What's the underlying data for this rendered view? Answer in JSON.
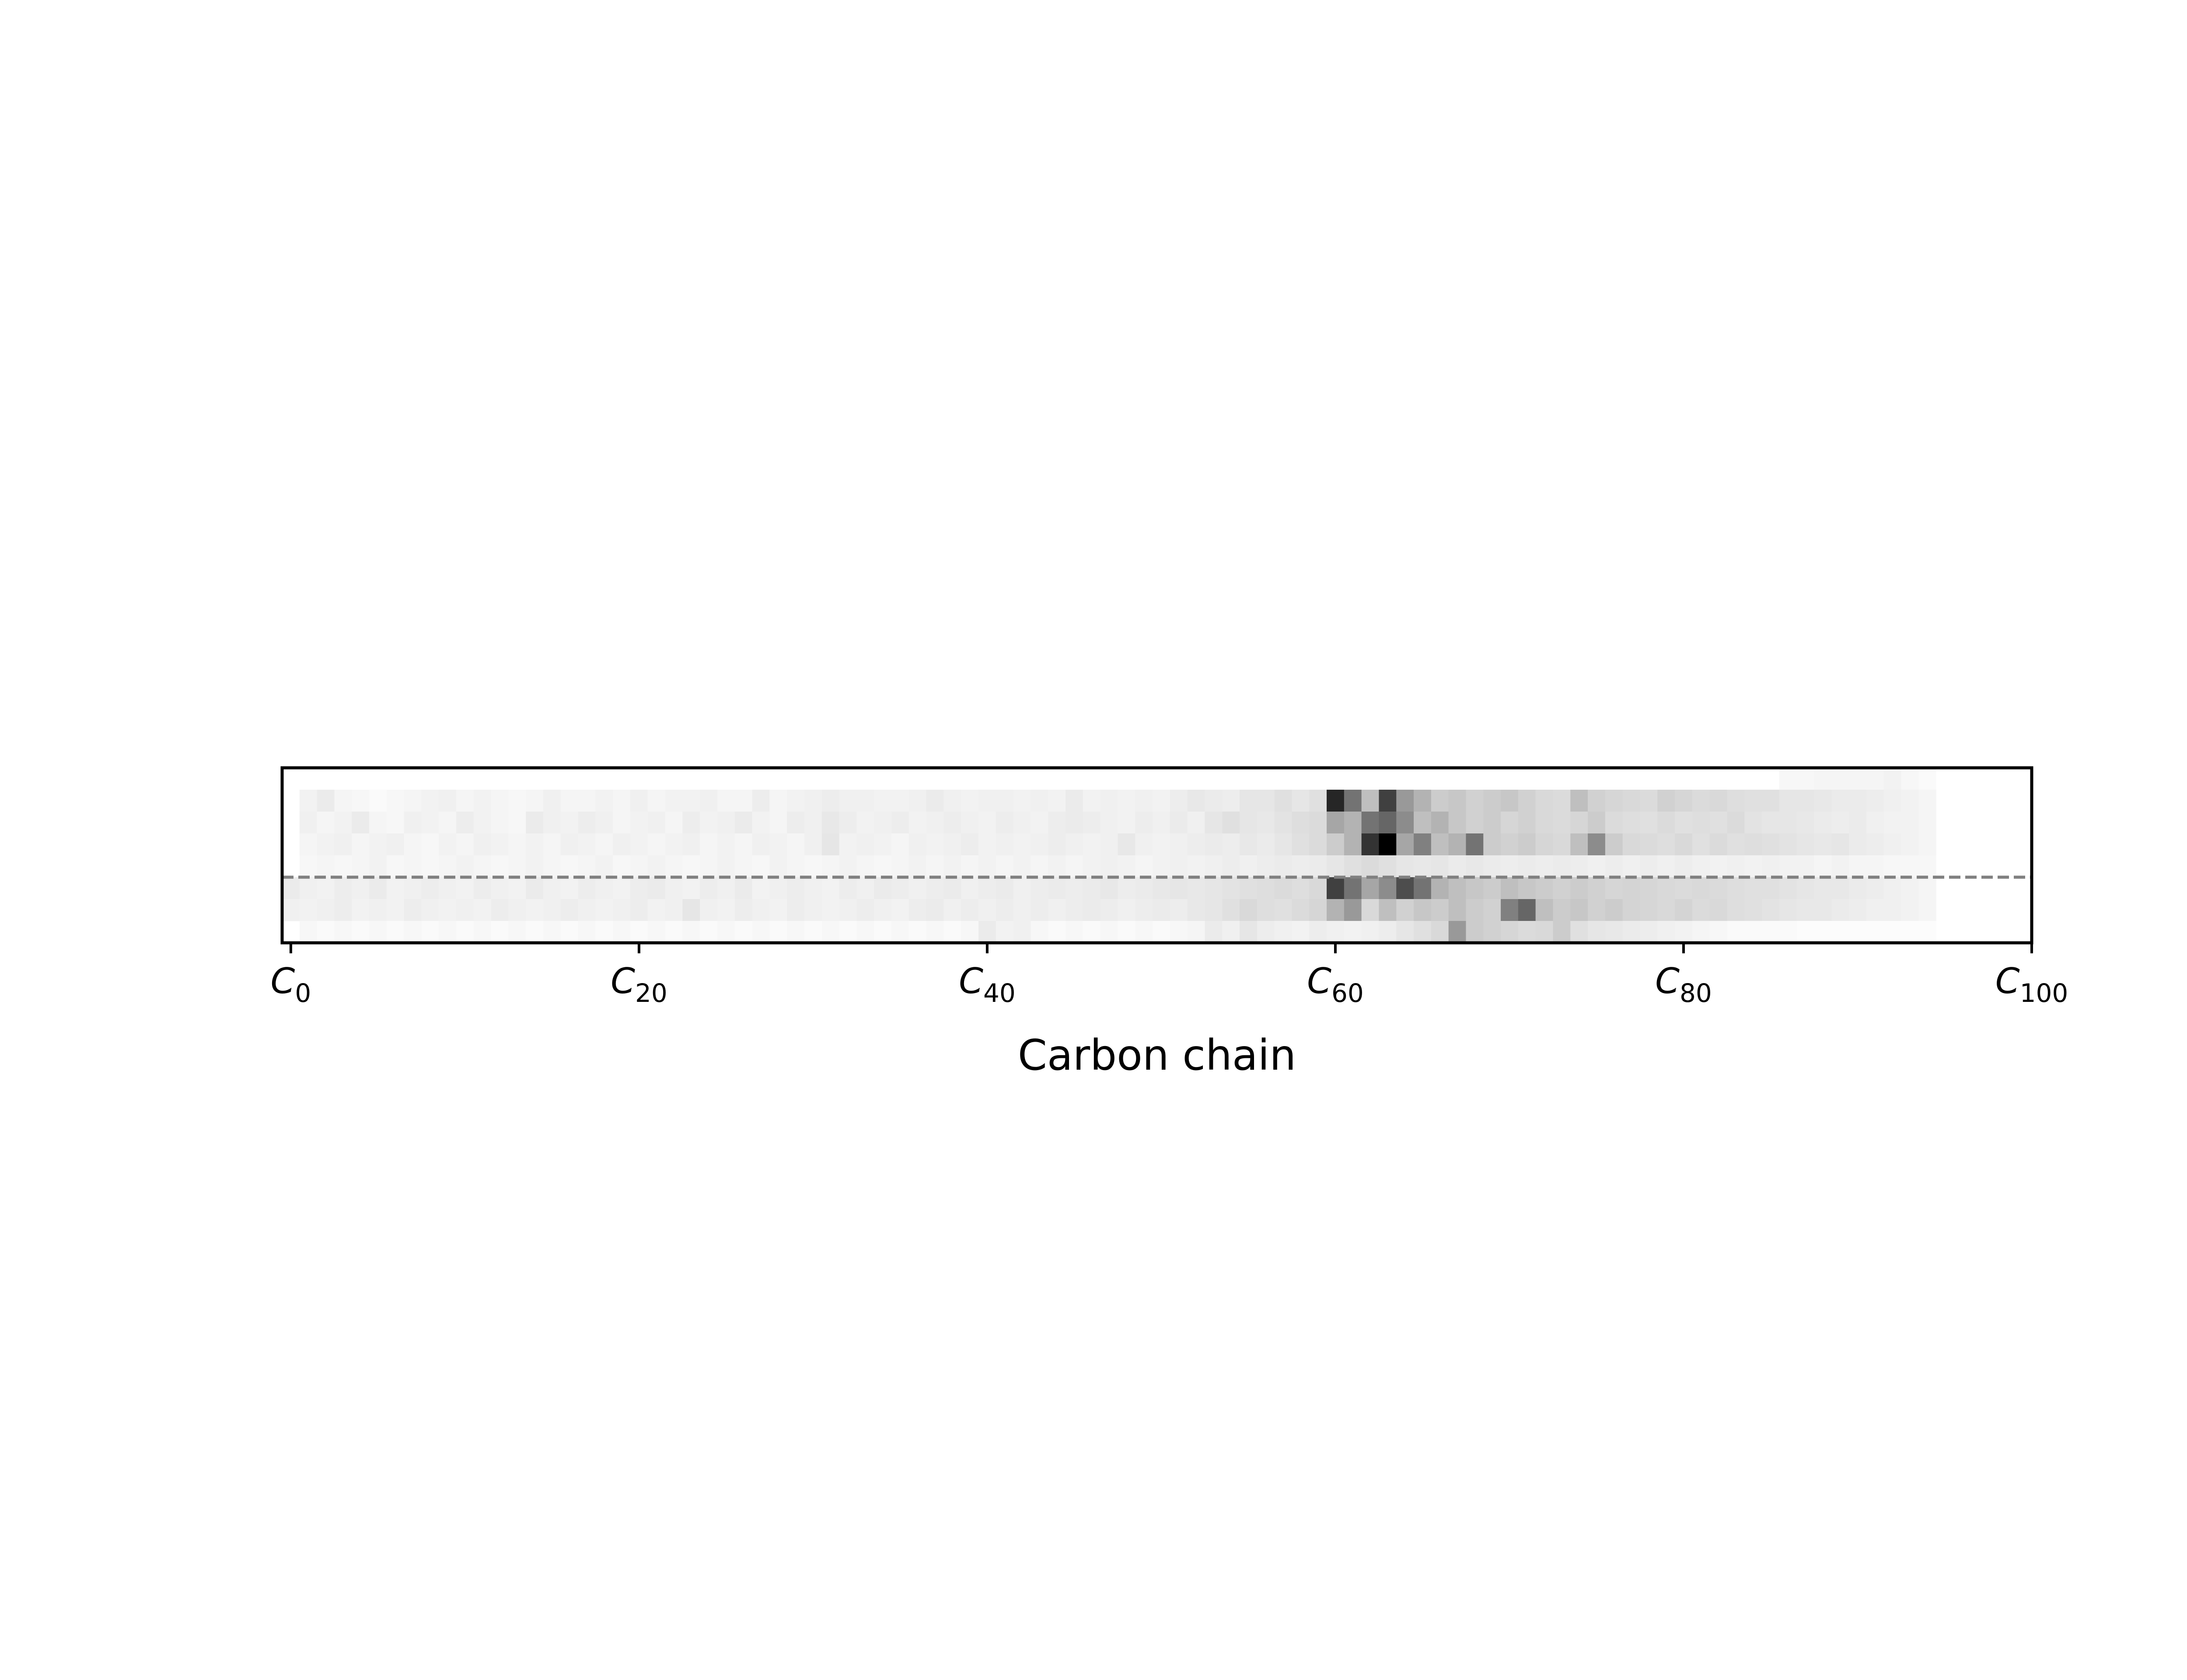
{
  "chart_data": {
    "type": "heatmap",
    "title": "",
    "xlabel": "Carbon chain",
    "ylabel": "",
    "xlim": [
      -0.5,
      100
    ],
    "colormap": "greys",
    "colors": {
      "frame": "#000000",
      "divider": "#808080",
      "background": "#ffffff"
    },
    "divider_line": {
      "style": "dashed",
      "between_rows": [
        4,
        5
      ]
    },
    "x_ticks": [
      {
        "value": 0,
        "base": "C",
        "sub": "0"
      },
      {
        "value": 20,
        "base": "C",
        "sub": "20"
      },
      {
        "value": 40,
        "base": "C",
        "sub": "40"
      },
      {
        "value": 60,
        "base": "C",
        "sub": "60"
      },
      {
        "value": 80,
        "base": "C",
        "sub": "80"
      },
      {
        "value": 100,
        "base": "C",
        "sub": "100"
      }
    ],
    "columns": 95,
    "rows": [
      {
        "index": 0,
        "values": [
          0,
          0,
          0,
          0,
          0,
          0,
          0,
          0,
          0,
          0,
          0,
          0,
          0,
          0,
          0,
          0,
          0,
          0,
          0,
          0,
          0,
          0,
          0,
          0,
          0,
          0,
          0,
          0,
          0,
          0,
          0,
          0,
          0,
          0,
          0,
          0,
          0,
          0,
          0,
          0,
          0,
          0,
          0,
          0,
          0,
          0,
          0,
          0,
          0,
          0,
          0,
          0,
          0,
          0,
          0,
          0,
          0,
          0,
          0,
          0,
          0,
          0,
          0,
          0,
          0,
          0,
          0,
          0,
          0,
          0,
          0,
          0,
          0,
          0,
          0,
          0,
          0,
          0,
          0,
          0,
          0,
          0,
          0,
          0,
          0,
          0,
          0.03,
          0.03,
          0.04,
          0.04,
          0.04,
          0.04,
          0.05,
          0.03,
          0.02
        ]
      },
      {
        "index": 1,
        "values": [
          0,
          0.05,
          0.08,
          0.04,
          0.03,
          0.02,
          0.03,
          0.04,
          0.05,
          0.06,
          0.04,
          0.05,
          0.04,
          0.03,
          0.04,
          0.06,
          0.04,
          0.04,
          0.05,
          0.04,
          0.06,
          0.04,
          0.05,
          0.05,
          0.06,
          0.04,
          0.04,
          0.07,
          0.04,
          0.05,
          0.06,
          0.07,
          0.06,
          0.06,
          0.05,
          0.05,
          0.06,
          0.08,
          0.06,
          0.05,
          0.06,
          0.06,
          0.05,
          0.06,
          0.05,
          0.08,
          0.05,
          0.06,
          0.05,
          0.06,
          0.05,
          0.07,
          0.09,
          0.08,
          0.07,
          0.1,
          0.1,
          0.12,
          0.1,
          0.12,
          0.85,
          0.55,
          0.25,
          0.75,
          0.4,
          0.3,
          0.2,
          0.22,
          0.18,
          0.2,
          0.22,
          0.18,
          0.15,
          0.14,
          0.25,
          0.18,
          0.16,
          0.15,
          0.14,
          0.18,
          0.16,
          0.14,
          0.15,
          0.13,
          0.12,
          0.12,
          0.1,
          0.1,
          0.09,
          0.08,
          0.08,
          0.07,
          0.06,
          0.05,
          0.04
        ]
      },
      {
        "index": 2,
        "values": [
          0,
          0.06,
          0.04,
          0.05,
          0.08,
          0.04,
          0.03,
          0.06,
          0.05,
          0.04,
          0.07,
          0.05,
          0.04,
          0.03,
          0.08,
          0.06,
          0.05,
          0.07,
          0.06,
          0.04,
          0.05,
          0.06,
          0.04,
          0.07,
          0.05,
          0.06,
          0.08,
          0.05,
          0.04,
          0.07,
          0.06,
          0.09,
          0.07,
          0.05,
          0.06,
          0.07,
          0.05,
          0.06,
          0.07,
          0.06,
          0.05,
          0.07,
          0.06,
          0.05,
          0.07,
          0.08,
          0.07,
          0.06,
          0.05,
          0.07,
          0.06,
          0.08,
          0.06,
          0.1,
          0.12,
          0.1,
          0.09,
          0.11,
          0.13,
          0.14,
          0.35,
          0.3,
          0.55,
          0.6,
          0.45,
          0.25,
          0.3,
          0.22,
          0.18,
          0.2,
          0.16,
          0.18,
          0.15,
          0.14,
          0.16,
          0.2,
          0.14,
          0.13,
          0.12,
          0.14,
          0.12,
          0.13,
          0.12,
          0.14,
          0.11,
          0.1,
          0.1,
          0.09,
          0.08,
          0.07,
          0.08,
          0.06,
          0.05,
          0.05,
          0.04
        ]
      },
      {
        "index": 3,
        "values": [
          0,
          0.04,
          0.05,
          0.06,
          0.04,
          0.05,
          0.06,
          0.04,
          0.03,
          0.05,
          0.04,
          0.06,
          0.05,
          0.04,
          0.05,
          0.04,
          0.06,
          0.05,
          0.04,
          0.06,
          0.05,
          0.04,
          0.05,
          0.06,
          0.04,
          0.05,
          0.04,
          0.06,
          0.05,
          0.04,
          0.06,
          0.1,
          0.05,
          0.06,
          0.05,
          0.04,
          0.06,
          0.05,
          0.06,
          0.07,
          0.05,
          0.06,
          0.05,
          0.06,
          0.07,
          0.06,
          0.05,
          0.06,
          0.09,
          0.06,
          0.05,
          0.06,
          0.07,
          0.08,
          0.07,
          0.09,
          0.08,
          0.1,
          0.12,
          0.14,
          0.2,
          0.3,
          0.8,
          1.0,
          0.35,
          0.5,
          0.25,
          0.3,
          0.55,
          0.2,
          0.18,
          0.2,
          0.16,
          0.15,
          0.25,
          0.45,
          0.2,
          0.15,
          0.14,
          0.13,
          0.15,
          0.12,
          0.14,
          0.12,
          0.13,
          0.12,
          0.11,
          0.1,
          0.09,
          0.1,
          0.08,
          0.07,
          0.06,
          0.05,
          0.04
        ]
      },
      {
        "index": 4,
        "values": [
          0,
          0.03,
          0.04,
          0.03,
          0.04,
          0.05,
          0.03,
          0.04,
          0.03,
          0.04,
          0.05,
          0.04,
          0.03,
          0.04,
          0.05,
          0.04,
          0.03,
          0.04,
          0.05,
          0.03,
          0.04,
          0.05,
          0.04,
          0.03,
          0.04,
          0.05,
          0.04,
          0.03,
          0.05,
          0.04,
          0.03,
          0.04,
          0.05,
          0.04,
          0.03,
          0.04,
          0.05,
          0.04,
          0.05,
          0.04,
          0.05,
          0.04,
          0.05,
          0.04,
          0.05,
          0.04,
          0.05,
          0.06,
          0.05,
          0.04,
          0.05,
          0.06,
          0.05,
          0.06,
          0.07,
          0.06,
          0.07,
          0.08,
          0.07,
          0.08,
          0.1,
          0.12,
          0.14,
          0.12,
          0.1,
          0.09,
          0.1,
          0.08,
          0.09,
          0.08,
          0.07,
          0.08,
          0.07,
          0.08,
          0.07,
          0.06,
          0.07,
          0.06,
          0.07,
          0.06,
          0.07,
          0.06,
          0.05,
          0.06,
          0.05,
          0.06,
          0.05,
          0.05,
          0.04,
          0.05,
          0.04,
          0.04,
          0.03,
          0.03,
          0.03
        ]
      },
      {
        "index": 5,
        "values": [
          0.08,
          0.06,
          0.05,
          0.07,
          0.06,
          0.08,
          0.05,
          0.06,
          0.07,
          0.06,
          0.05,
          0.07,
          0.06,
          0.05,
          0.08,
          0.06,
          0.05,
          0.07,
          0.06,
          0.05,
          0.07,
          0.08,
          0.06,
          0.05,
          0.07,
          0.06,
          0.08,
          0.05,
          0.06,
          0.07,
          0.06,
          0.05,
          0.07,
          0.06,
          0.08,
          0.07,
          0.06,
          0.07,
          0.08,
          0.06,
          0.07,
          0.08,
          0.06,
          0.07,
          0.08,
          0.07,
          0.08,
          0.09,
          0.07,
          0.08,
          0.09,
          0.1,
          0.09,
          0.1,
          0.11,
          0.12,
          0.13,
          0.14,
          0.13,
          0.15,
          0.75,
          0.55,
          0.35,
          0.45,
          0.7,
          0.55,
          0.3,
          0.25,
          0.22,
          0.2,
          0.25,
          0.22,
          0.2,
          0.18,
          0.2,
          0.18,
          0.16,
          0.17,
          0.16,
          0.15,
          0.14,
          0.15,
          0.14,
          0.13,
          0.12,
          0.12,
          0.11,
          0.1,
          0.09,
          0.09,
          0.08,
          0.07,
          0.06,
          0.05,
          0.04
        ]
      },
      {
        "index": 6,
        "values": [
          0.06,
          0.05,
          0.06,
          0.07,
          0.05,
          0.06,
          0.05,
          0.07,
          0.06,
          0.05,
          0.06,
          0.05,
          0.07,
          0.06,
          0.05,
          0.06,
          0.07,
          0.06,
          0.05,
          0.06,
          0.07,
          0.05,
          0.06,
          0.1,
          0.06,
          0.05,
          0.07,
          0.06,
          0.05,
          0.07,
          0.06,
          0.05,
          0.06,
          0.07,
          0.06,
          0.05,
          0.07,
          0.08,
          0.06,
          0.07,
          0.06,
          0.07,
          0.06,
          0.07,
          0.06,
          0.07,
          0.08,
          0.07,
          0.06,
          0.07,
          0.08,
          0.07,
          0.09,
          0.1,
          0.12,
          0.15,
          0.13,
          0.12,
          0.14,
          0.16,
          0.3,
          0.4,
          0.15,
          0.25,
          0.18,
          0.22,
          0.2,
          0.25,
          0.2,
          0.18,
          0.5,
          0.6,
          0.25,
          0.2,
          0.22,
          0.18,
          0.2,
          0.17,
          0.16,
          0.15,
          0.17,
          0.14,
          0.15,
          0.13,
          0.12,
          0.11,
          0.1,
          0.09,
          0.09,
          0.08,
          0.07,
          0.06,
          0.06,
          0.05,
          0.04
        ]
      },
      {
        "index": 7,
        "values": [
          0,
          0.03,
          0.02,
          0.03,
          0.02,
          0.03,
          0.02,
          0.03,
          0.02,
          0.03,
          0.02,
          0.03,
          0.02,
          0.03,
          0.02,
          0.03,
          0.02,
          0.03,
          0.02,
          0.03,
          0.02,
          0.03,
          0.02,
          0.03,
          0.02,
          0.03,
          0.02,
          0.03,
          0.02,
          0.03,
          0.02,
          0.03,
          0.02,
          0.03,
          0.02,
          0.03,
          0.02,
          0.03,
          0.02,
          0.03,
          0.08,
          0.05,
          0.06,
          0.03,
          0.02,
          0.03,
          0.02,
          0.03,
          0.02,
          0.03,
          0.02,
          0.03,
          0.04,
          0.08,
          0.06,
          0.1,
          0.07,
          0.06,
          0.05,
          0.07,
          0.06,
          0.05,
          0.06,
          0.07,
          0.1,
          0.12,
          0.15,
          0.4,
          0.2,
          0.18,
          0.16,
          0.14,
          0.15,
          0.2,
          0.12,
          0.1,
          0.09,
          0.08,
          0.07,
          0.06,
          0.05,
          0.04,
          0.03,
          0.02,
          0.02,
          0.02,
          0.02,
          0.01,
          0.01,
          0.01,
          0.01,
          0.01,
          0.01,
          0.01,
          0.01
        ]
      }
    ]
  }
}
